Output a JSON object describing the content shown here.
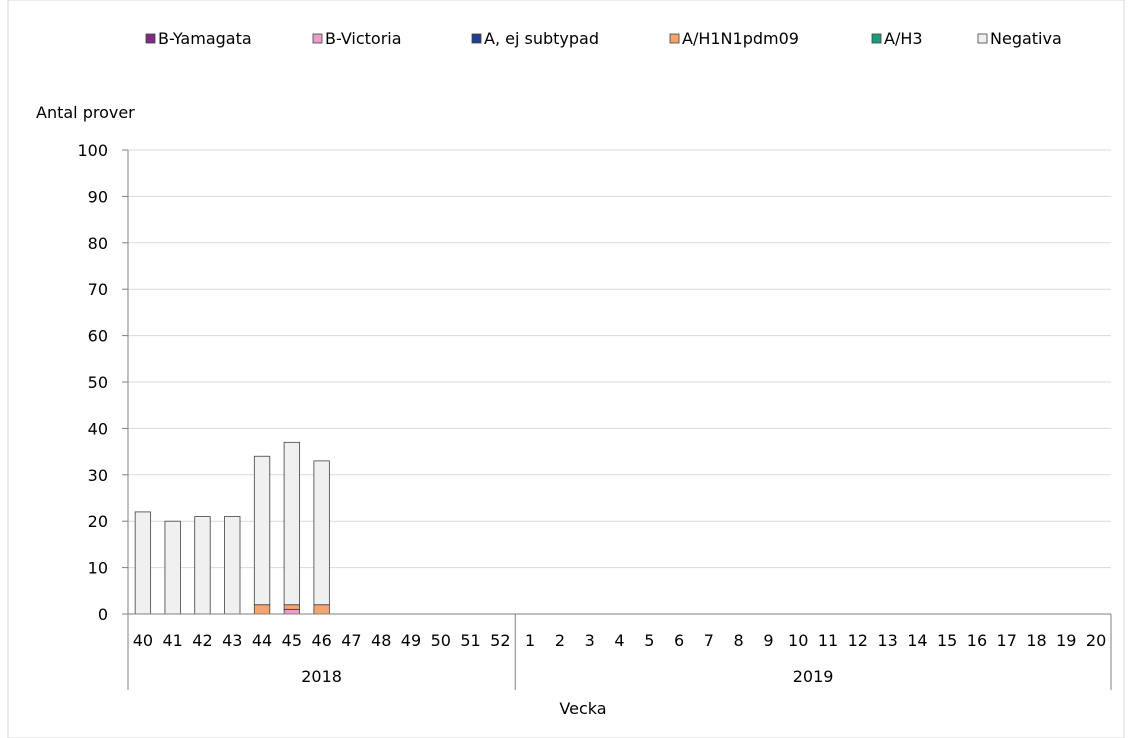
{
  "chart_data": {
    "type": "bar",
    "stacked": true,
    "ylabel": "Antal prover",
    "xlabel": "Vecka",
    "ylim": [
      0,
      100
    ],
    "yticks": [
      0,
      10,
      20,
      30,
      40,
      50,
      60,
      70,
      80,
      90,
      100
    ],
    "grid": true,
    "legend_position": "top",
    "categories": [
      "40",
      "41",
      "42",
      "43",
      "44",
      "45",
      "46",
      "47",
      "48",
      "49",
      "50",
      "51",
      "52",
      "1",
      "2",
      "3",
      "4",
      "5",
      "6",
      "7",
      "8",
      "9",
      "10",
      "11",
      "12",
      "13",
      "14",
      "15",
      "16",
      "17",
      "18",
      "19",
      "20"
    ],
    "year_groups": [
      {
        "label": "2018",
        "count": 13
      },
      {
        "label": "2019",
        "count": 20
      }
    ],
    "series": [
      {
        "name": "B-Yamagata",
        "color": "#7b2d7f",
        "values": [
          0,
          0,
          0,
          0,
          0,
          0,
          0,
          0,
          0,
          0,
          0,
          0,
          0,
          0,
          0,
          0,
          0,
          0,
          0,
          0,
          0,
          0,
          0,
          0,
          0,
          0,
          0,
          0,
          0,
          0,
          0,
          0,
          0
        ]
      },
      {
        "name": "B-Victoria",
        "color": "#e8a0c8",
        "values": [
          0,
          0,
          0,
          0,
          0,
          1,
          0,
          0,
          0,
          0,
          0,
          0,
          0,
          0,
          0,
          0,
          0,
          0,
          0,
          0,
          0,
          0,
          0,
          0,
          0,
          0,
          0,
          0,
          0,
          0,
          0,
          0,
          0
        ]
      },
      {
        "name": "A, ej subtypad",
        "color": "#1f3f8f",
        "values": [
          0,
          0,
          0,
          0,
          0,
          0,
          0,
          0,
          0,
          0,
          0,
          0,
          0,
          0,
          0,
          0,
          0,
          0,
          0,
          0,
          0,
          0,
          0,
          0,
          0,
          0,
          0,
          0,
          0,
          0,
          0,
          0,
          0
        ]
      },
      {
        "name": "A/H1N1pdm09",
        "color": "#f4a46e",
        "values": [
          0,
          0,
          0,
          0,
          2,
          1,
          2,
          0,
          0,
          0,
          0,
          0,
          0,
          0,
          0,
          0,
          0,
          0,
          0,
          0,
          0,
          0,
          0,
          0,
          0,
          0,
          0,
          0,
          0,
          0,
          0,
          0,
          0
        ]
      },
      {
        "name": "A/H3",
        "color": "#1f9a7a",
        "values": [
          0,
          0,
          0,
          0,
          0,
          0,
          0,
          0,
          0,
          0,
          0,
          0,
          0,
          0,
          0,
          0,
          0,
          0,
          0,
          0,
          0,
          0,
          0,
          0,
          0,
          0,
          0,
          0,
          0,
          0,
          0,
          0,
          0
        ]
      },
      {
        "name": "Negativa",
        "color": "#f0f0f0",
        "values": [
          22,
          20,
          21,
          21,
          32,
          35,
          31,
          0,
          0,
          0,
          0,
          0,
          0,
          0,
          0,
          0,
          0,
          0,
          0,
          0,
          0,
          0,
          0,
          0,
          0,
          0,
          0,
          0,
          0,
          0,
          0,
          0,
          0
        ]
      }
    ]
  }
}
